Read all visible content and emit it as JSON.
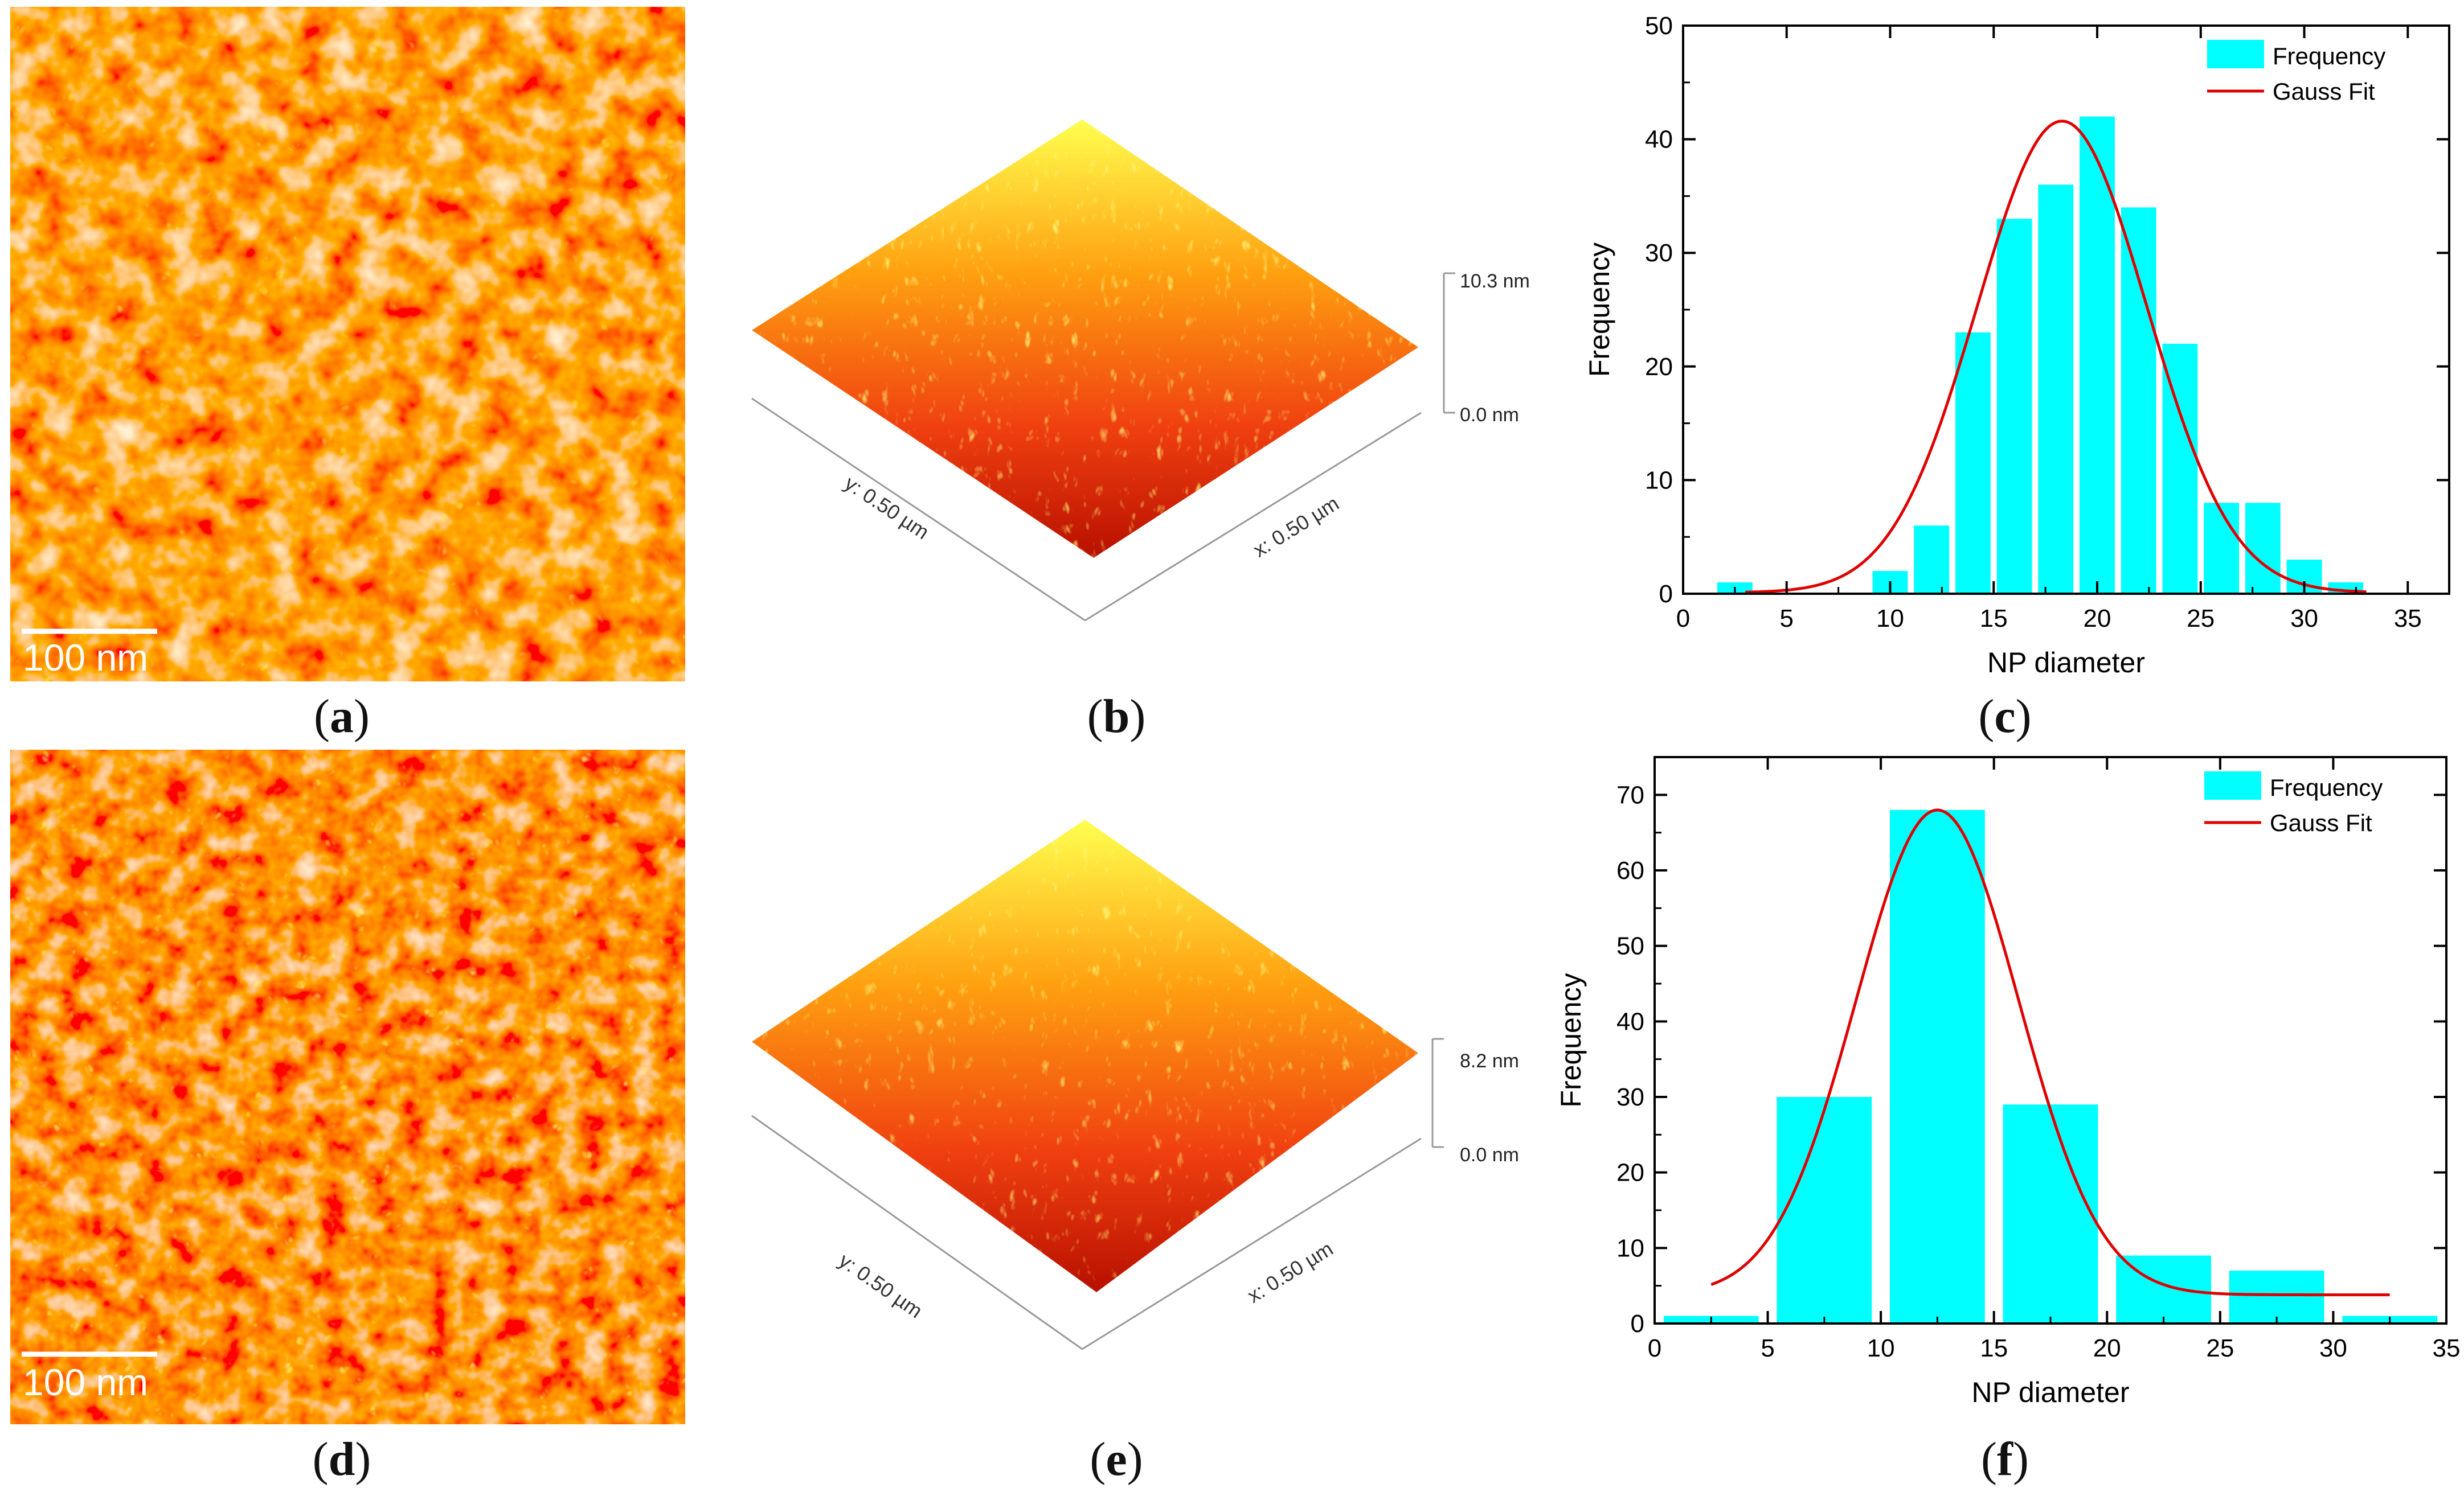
{
  "panels": {
    "a": {
      "label": "a",
      "scale_text": "100 nm"
    },
    "b": {
      "label": "b",
      "z_top": "10.3 nm",
      "z_bottom": "0.0 nm",
      "y_axis": "y: 0.50 µm",
      "x_axis": "x: 0.50 µm"
    },
    "c": {
      "label": "c"
    },
    "d": {
      "label": "d",
      "scale_text": "100 nm"
    },
    "e": {
      "label": "e",
      "z_top": "8.2 nm",
      "z_bottom": "0.0 nm",
      "y_axis": "y: 0.50 µm",
      "x_axis": "x: 0.50 µm"
    },
    "f": {
      "label": "f"
    }
  },
  "colors": {
    "bar": "#00ffff",
    "fit": "#e00000",
    "afm_low": "#8b0000",
    "afm_mid": "#ff4500",
    "afm_high": "#ffff40"
  },
  "chart_data": [
    {
      "type": "bar",
      "panel": "c",
      "xlabel": "NP diameter",
      "ylabel": "Frequency",
      "xlim": [
        0,
        37
      ],
      "ylim": [
        0,
        50
      ],
      "xticks": [
        0,
        5,
        10,
        15,
        20,
        25,
        30,
        35
      ],
      "yticks": [
        0,
        10,
        20,
        30,
        40,
        50
      ],
      "bar_width": 1.7,
      "bar_centers": [
        2.5,
        10,
        12,
        14,
        16,
        18,
        20,
        22,
        24,
        26,
        28,
        30,
        32
      ],
      "values": [
        1,
        2,
        6,
        23,
        33,
        36,
        42,
        34,
        22,
        8,
        8,
        3,
        1
      ],
      "legend": [
        "Frequency",
        "Gauss Fit"
      ],
      "fit": {
        "x0": 3.0,
        "x1": 33.0,
        "y0": 0.1,
        "amplitude": 41.5,
        "center": 18.3,
        "sigma": 4.1
      }
    },
    {
      "type": "bar",
      "panel": "f",
      "xlabel": "NP diameter",
      "ylabel": "Frequency",
      "xlim": [
        0,
        35
      ],
      "ylim": [
        0,
        75
      ],
      "xticks": [
        0,
        5,
        10,
        15,
        20,
        25,
        30,
        35
      ],
      "yticks": [
        0,
        10,
        20,
        30,
        40,
        50,
        60,
        70
      ],
      "bar_width": 4.2,
      "bar_centers": [
        2.5,
        7.5,
        12.5,
        17.5,
        22.5,
        27.5,
        32.5
      ],
      "values": [
        1,
        30,
        68,
        29,
        9,
        7,
        1
      ],
      "legend": [
        "Frequency",
        "Gauss Fit"
      ],
      "fit": {
        "x0": 2.5,
        "x1": 32.5,
        "y0": 3.8,
        "amplitude": 64.2,
        "center": 12.5,
        "sigma": 3.6
      }
    }
  ]
}
